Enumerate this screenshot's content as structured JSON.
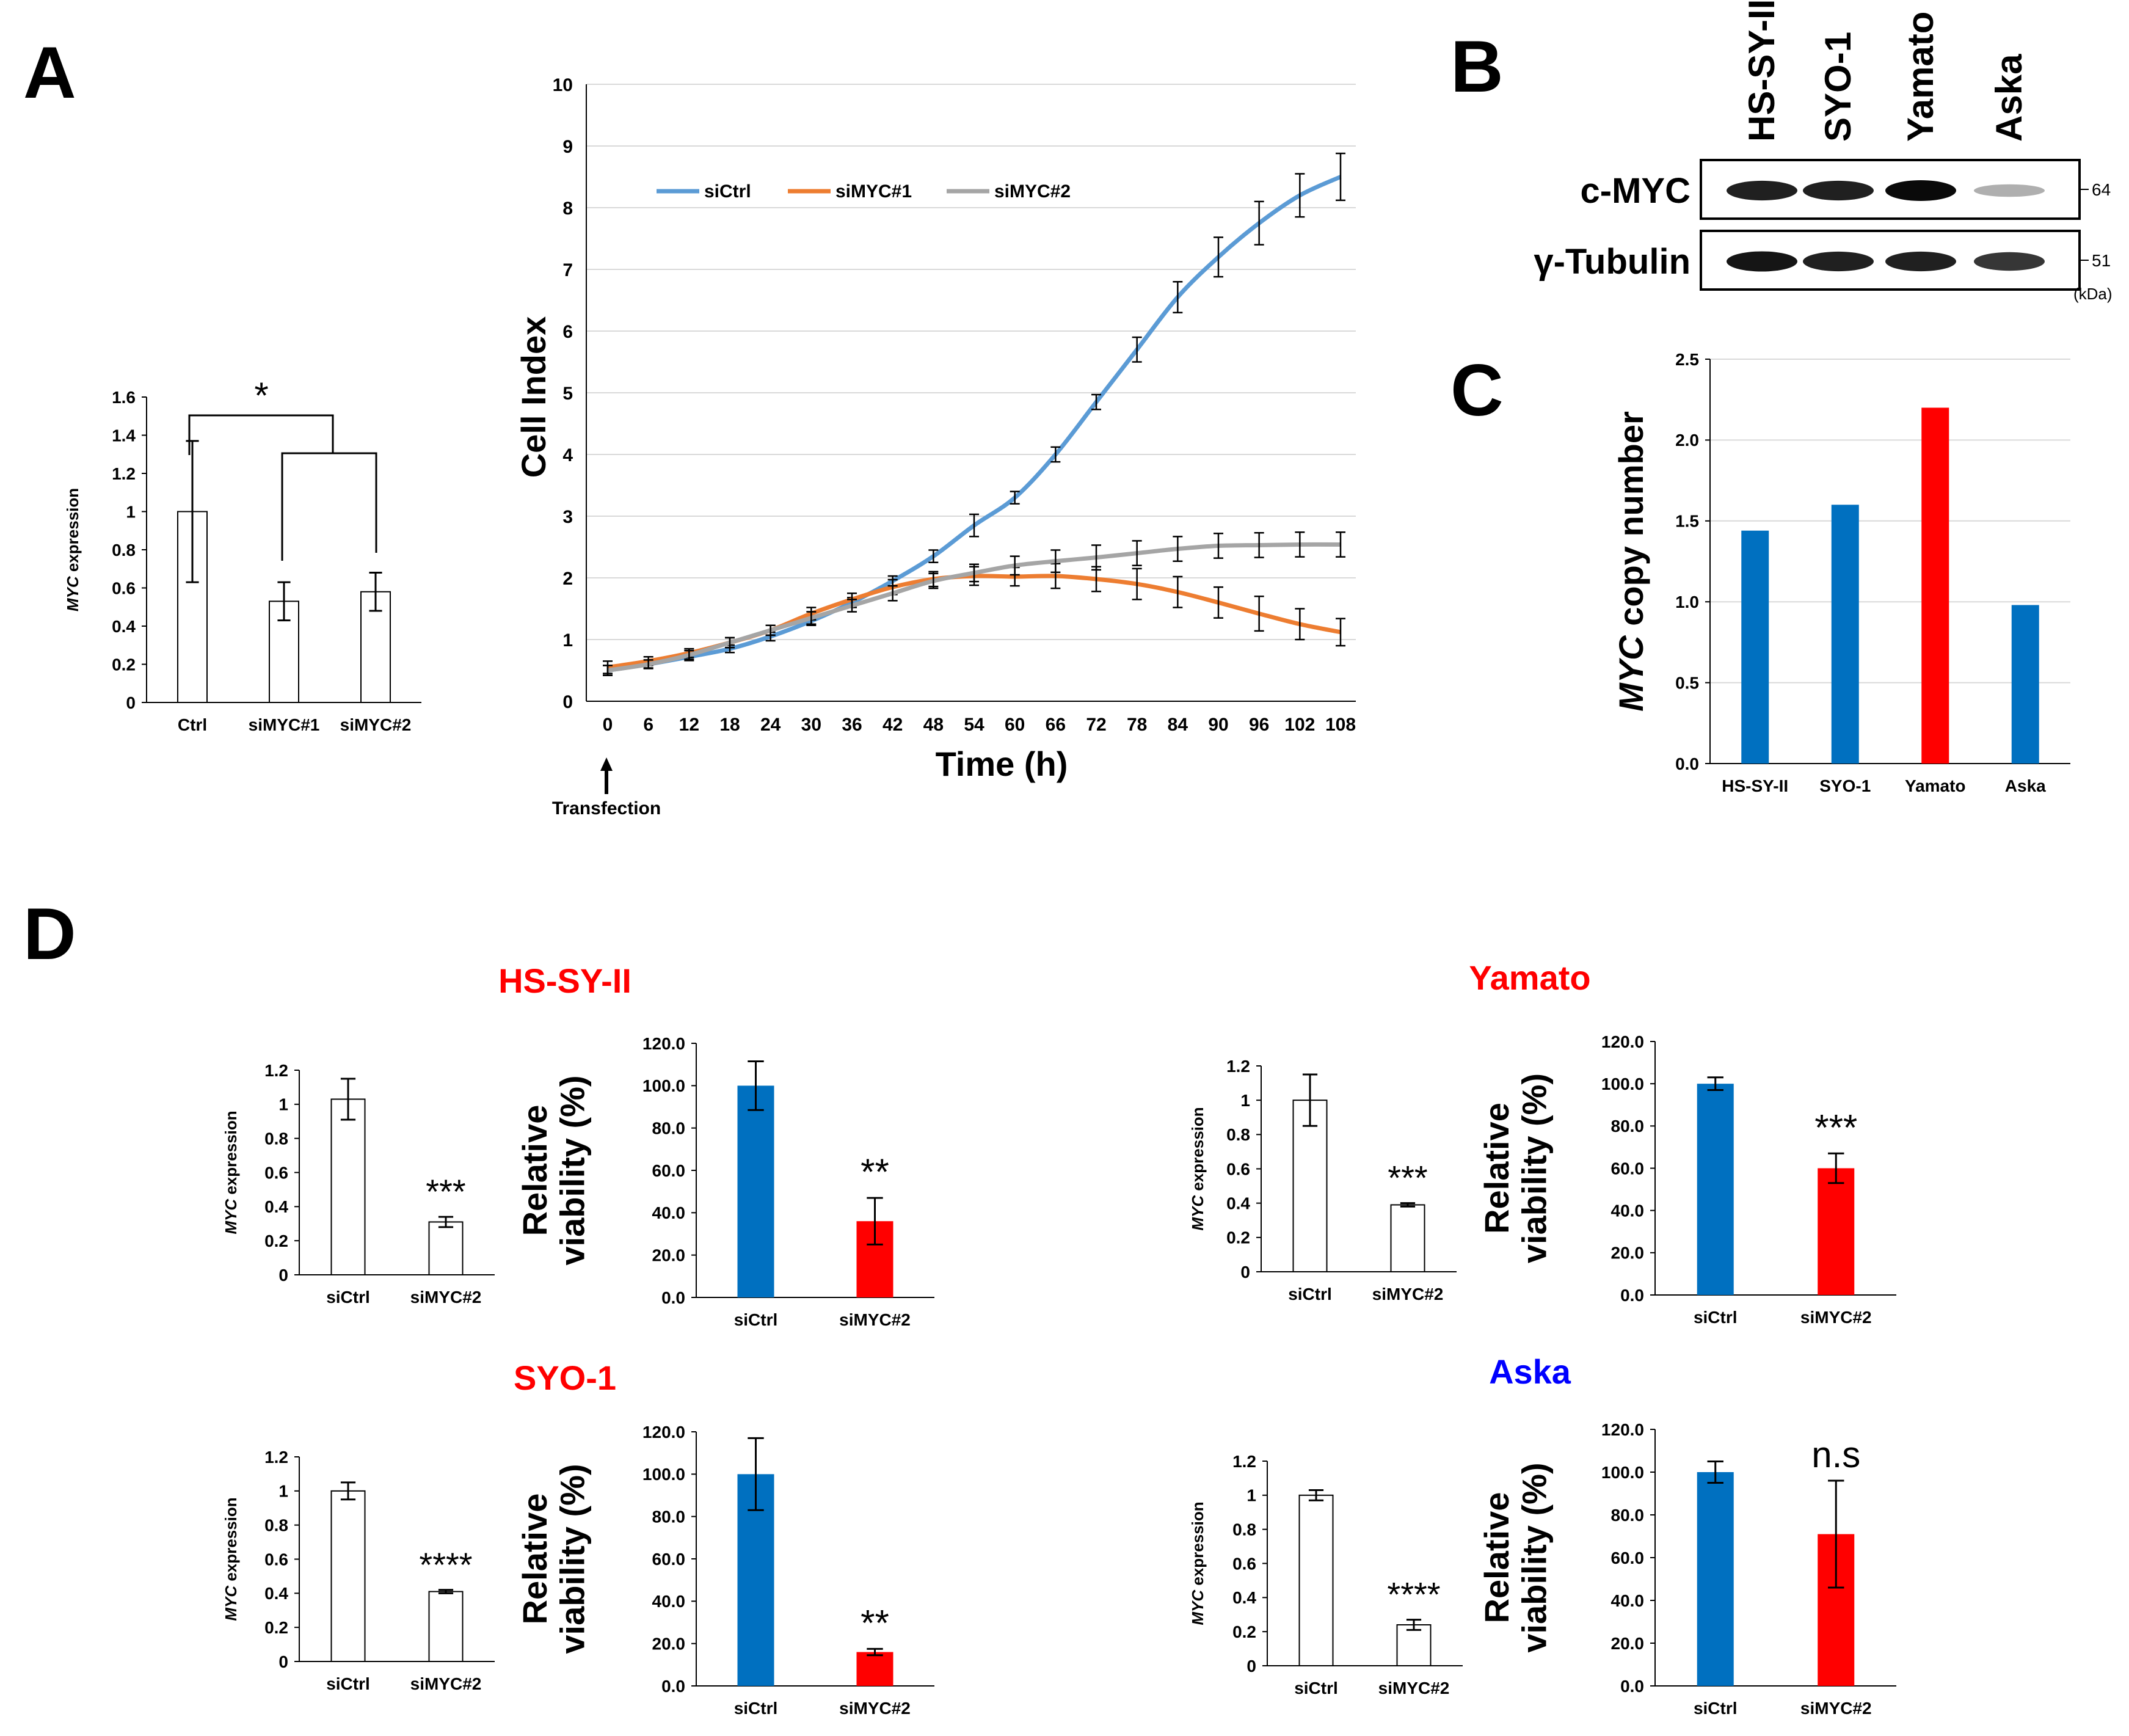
{
  "panels": {
    "A": "A",
    "B": "B",
    "C": "C",
    "D": "D"
  },
  "colors": {
    "blue": "#5B9BD5",
    "orange": "#ED7D31",
    "gray": "#A5A5A5",
    "bar_blue": "#0070C0",
    "bar_red": "#FF0000",
    "title_red": "#FF0000",
    "title_blue": "#0000FF"
  },
  "cell_line_titles": {
    "hs": "HS-SY-II",
    "yamato": "Yamato",
    "syo": "SYO-1",
    "aska": "Aska"
  },
  "western": {
    "lanes": [
      "HS-SY-II",
      "SYO-1",
      "Yamato",
      "Aska"
    ],
    "rows": [
      {
        "label": "c-MYC",
        "marker": "64",
        "intensity": [
          0.9,
          0.9,
          1.0,
          0.25
        ]
      },
      {
        "label": "γ-Tubulin",
        "marker": "51",
        "intensity": [
          0.95,
          0.9,
          0.9,
          0.8
        ]
      }
    ],
    "unit": "(kDa)"
  },
  "annotations": {
    "transfection": "Transfection",
    "sig_A": "*"
  },
  "chart_data": [
    {
      "id": "A1",
      "type": "bar",
      "categories": [
        "Ctrl",
        "siMYC#1",
        "siMYC#2"
      ],
      "values": [
        1.0,
        0.53,
        0.58
      ],
      "errors": [
        0.37,
        0.1,
        0.1
      ],
      "ylabel_italic": "MYC",
      "ylabel_rest": " expression",
      "ylim": [
        0,
        1.6
      ],
      "yticks": [
        "0",
        "0.2",
        "0.4",
        "0.6",
        "0.8",
        "1",
        "1.2",
        "1.4",
        "1.6"
      ],
      "fill": "white"
    },
    {
      "id": "A2",
      "type": "line",
      "x": [
        0,
        6,
        12,
        18,
        24,
        30,
        36,
        42,
        48,
        54,
        60,
        66,
        72,
        78,
        84,
        90,
        96,
        102,
        108
      ],
      "xticks": [
        "0",
        "6",
        "12",
        "18",
        "24",
        "30",
        "36",
        "42",
        "48",
        "54",
        "60",
        "66",
        "72",
        "78",
        "84",
        "90",
        "96",
        "102",
        "108"
      ],
      "ylim": [
        0,
        10
      ],
      "yticks": [
        "0",
        "1",
        "2",
        "3",
        "4",
        "5",
        "6",
        "7",
        "8",
        "9",
        "10"
      ],
      "xlabel": "Time (h)",
      "ylabel": "Cell Index",
      "legend": "top-left",
      "series": [
        {
          "name": "siCtrl",
          "color": "#5B9BD5",
          "values": [
            0.5,
            0.6,
            0.72,
            0.85,
            1.05,
            1.3,
            1.6,
            1.95,
            2.35,
            2.85,
            3.3,
            4.0,
            4.85,
            5.7,
            6.55,
            7.2,
            7.75,
            8.2,
            8.5
          ],
          "errors": [
            0.08,
            0.06,
            0.06,
            0.06,
            0.07,
            0.07,
            0.08,
            0.08,
            0.1,
            0.18,
            0.1,
            0.12,
            0.12,
            0.2,
            0.25,
            0.32,
            0.35,
            0.35,
            0.38
          ]
        },
        {
          "name": "siMYC#1",
          "color": "#ED7D31",
          "values": [
            0.55,
            0.65,
            0.78,
            0.95,
            1.15,
            1.42,
            1.65,
            1.85,
            1.98,
            2.03,
            2.02,
            2.03,
            1.98,
            1.9,
            1.77,
            1.6,
            1.42,
            1.25,
            1.12
          ],
          "errors": [
            0.1,
            0.07,
            0.07,
            0.08,
            0.08,
            0.1,
            0.1,
            0.12,
            0.12,
            0.15,
            0.15,
            0.2,
            0.2,
            0.25,
            0.25,
            0.25,
            0.28,
            0.25,
            0.22
          ]
        },
        {
          "name": "siMYC#2",
          "color": "#A5A5A5",
          "values": [
            0.5,
            0.6,
            0.75,
            0.95,
            1.15,
            1.35,
            1.55,
            1.75,
            1.95,
            2.08,
            2.2,
            2.27,
            2.33,
            2.4,
            2.47,
            2.52,
            2.53,
            2.54,
            2.54
          ],
          "errors": [
            0.08,
            0.07,
            0.07,
            0.08,
            0.08,
            0.1,
            0.1,
            0.12,
            0.12,
            0.14,
            0.15,
            0.18,
            0.2,
            0.2,
            0.2,
            0.2,
            0.2,
            0.2,
            0.2
          ]
        }
      ]
    },
    {
      "id": "C",
      "type": "bar",
      "categories": [
        "HS-SY-II",
        "SYO-1",
        "Yamato",
        "Aska"
      ],
      "values": [
        1.44,
        1.6,
        2.2,
        0.98
      ],
      "colors": [
        "#0070C0",
        "#0070C0",
        "#FF0000",
        "#0070C0"
      ],
      "ylabel_italic": "MYC",
      "ylabel_rest": " copy number",
      "ylim": [
        0,
        2.5
      ],
      "yticks": [
        "0.0",
        "0.5",
        "1.0",
        "1.5",
        "2.0",
        "2.5"
      ],
      "grid": true
    },
    {
      "id": "D_hs_expr",
      "type": "bar",
      "categories": [
        "siCtrl",
        "siMYC#2"
      ],
      "values": [
        1.03,
        0.31
      ],
      "errors": [
        0.12,
        0.03
      ],
      "ylim": [
        0,
        1.2
      ],
      "yticks": [
        "0",
        "0.2",
        "0.4",
        "0.6",
        "0.8",
        "1",
        "1.2"
      ],
      "ylabel_italic": "MYC",
      "ylabel_rest": " expression",
      "sig": "***"
    },
    {
      "id": "D_hs_via",
      "type": "bar",
      "categories": [
        "siCtrl",
        "siMYC#2"
      ],
      "values": [
        100.0,
        36.0
      ],
      "errors": [
        11.5,
        11.0
      ],
      "ylim": [
        0,
        120
      ],
      "yticks": [
        "0.0",
        "20.0",
        "40.0",
        "60.0",
        "80.0",
        "100.0",
        "120.0"
      ],
      "ylabel1": "Relative",
      "ylabel2": "viability (%)",
      "sig": "**",
      "colors": [
        "#0070C0",
        "#FF0000"
      ]
    },
    {
      "id": "D_ya_expr",
      "type": "bar",
      "categories": [
        "siCtrl",
        "siMYC#2"
      ],
      "values": [
        1.0,
        0.39
      ],
      "errors": [
        0.15,
        0.01
      ],
      "ylim": [
        0,
        1.2
      ],
      "yticks": [
        "0",
        "0.2",
        "0.4",
        "0.6",
        "0.8",
        "1",
        "1.2"
      ],
      "ylabel_italic": "MYC",
      "ylabel_rest": " expression",
      "sig": "***"
    },
    {
      "id": "D_ya_via",
      "type": "bar",
      "categories": [
        "siCtrl",
        "siMYC#2"
      ],
      "values": [
        100.0,
        60.0
      ],
      "errors": [
        3.0,
        7.0
      ],
      "ylim": [
        0,
        120
      ],
      "yticks": [
        "0.0",
        "20.0",
        "40.0",
        "60.0",
        "80.0",
        "100.0",
        "120.0"
      ],
      "ylabel1": "Relative",
      "ylabel2": "viability (%)",
      "sig": "***",
      "colors": [
        "#0070C0",
        "#FF0000"
      ]
    },
    {
      "id": "D_syo_expr",
      "type": "bar",
      "categories": [
        "siCtrl",
        "siMYC#2"
      ],
      "values": [
        1.0,
        0.41
      ],
      "errors": [
        0.05,
        0.01
      ],
      "ylim": [
        0,
        1.2
      ],
      "yticks": [
        "0",
        "0.2",
        "0.4",
        "0.6",
        "0.8",
        "1",
        "1.2"
      ],
      "ylabel_italic": "MYC",
      "ylabel_rest": " expression",
      "sig": "****"
    },
    {
      "id": "D_syo_via",
      "type": "bar",
      "categories": [
        "siCtrl",
        "siMYC#2"
      ],
      "values": [
        100.0,
        16.0
      ],
      "errors": [
        17.0,
        1.5
      ],
      "ylim": [
        0,
        120
      ],
      "yticks": [
        "0.0",
        "20.0",
        "40.0",
        "60.0",
        "80.0",
        "100.0",
        "120.0"
      ],
      "ylabel1": "Relative",
      "ylabel2": "viability (%)",
      "sig": "**",
      "colors": [
        "#0070C0",
        "#FF0000"
      ]
    },
    {
      "id": "D_aska_expr",
      "type": "bar",
      "categories": [
        "siCtrl",
        "siMYC#2"
      ],
      "values": [
        1.0,
        0.24
      ],
      "errors": [
        0.03,
        0.03
      ],
      "ylim": [
        0,
        1.2
      ],
      "yticks": [
        "0",
        "0.2",
        "0.4",
        "0.6",
        "0.8",
        "1",
        "1.2"
      ],
      "ylabel_italic": "MYC",
      "ylabel_rest": " expression",
      "sig": "****"
    },
    {
      "id": "D_aska_via",
      "type": "bar",
      "categories": [
        "siCtrl",
        "siMYC#2"
      ],
      "values": [
        100.0,
        71.0
      ],
      "errors": [
        5.0,
        25.0
      ],
      "ylim": [
        0,
        120
      ],
      "yticks": [
        "0.0",
        "20.0",
        "40.0",
        "60.0",
        "80.0",
        "100.0",
        "120.0"
      ],
      "ylabel1": "Relative",
      "ylabel2": "viability (%)",
      "sig": "n.s",
      "colors": [
        "#0070C0",
        "#FF0000"
      ]
    }
  ]
}
